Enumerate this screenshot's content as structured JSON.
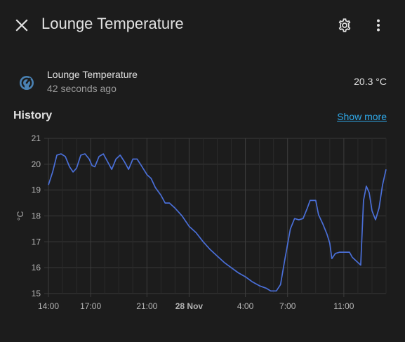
{
  "header": {
    "title": "Lounge Temperature",
    "icons": [
      "close-icon",
      "gear-icon",
      "dots-vertical-icon"
    ]
  },
  "entity": {
    "name": "Lounge Temperature",
    "last_changed": "42 seconds ago",
    "state": "20.3 °C",
    "icon": "thermostat-gauge-icon"
  },
  "history": {
    "title": "History",
    "show_more": "Show more"
  },
  "colors": {
    "background": "#1c1c1c",
    "line": "#4a6fd8",
    "link": "#2fa8e8",
    "icon": "#4a82b4"
  },
  "chart_data": {
    "type": "line",
    "ylabel": "°C",
    "ylim": [
      15,
      21
    ],
    "yticks": [
      15,
      16,
      17,
      18,
      19,
      20,
      21
    ],
    "xlabels": [
      {
        "t": 0,
        "label": "14:00",
        "bold": false
      },
      {
        "t": 3,
        "label": "17:00",
        "bold": false
      },
      {
        "t": 7,
        "label": "21:00",
        "bold": false
      },
      {
        "t": 10,
        "label": "28 Nov",
        "bold": true
      },
      {
        "t": 14,
        "label": "4:00",
        "bold": false
      },
      {
        "t": 17,
        "label": "7:00",
        "bold": false
      },
      {
        "t": 21,
        "label": "11:00",
        "bold": false
      }
    ],
    "xgrid": [
      0,
      1,
      2,
      3,
      4,
      5,
      6,
      7,
      8,
      9,
      10,
      11,
      12,
      13,
      14,
      15,
      16,
      17,
      18,
      19,
      20,
      21,
      22,
      23,
      24
    ],
    "series": [
      {
        "points": [
          [
            0.0,
            19.2
          ],
          [
            0.3,
            19.7
          ],
          [
            0.6,
            20.35
          ],
          [
            0.9,
            20.4
          ],
          [
            1.2,
            20.3
          ],
          [
            1.5,
            19.9
          ],
          [
            1.75,
            19.7
          ],
          [
            2.0,
            19.85
          ],
          [
            2.3,
            20.35
          ],
          [
            2.6,
            20.4
          ],
          [
            2.9,
            20.2
          ],
          [
            3.1,
            19.95
          ],
          [
            3.3,
            19.9
          ],
          [
            3.6,
            20.3
          ],
          [
            3.9,
            20.4
          ],
          [
            4.2,
            20.1
          ],
          [
            4.5,
            19.8
          ],
          [
            4.8,
            20.2
          ],
          [
            5.1,
            20.35
          ],
          [
            5.4,
            20.1
          ],
          [
            5.7,
            19.8
          ],
          [
            6.0,
            20.2
          ],
          [
            6.3,
            20.2
          ],
          [
            6.6,
            19.95
          ],
          [
            7.0,
            19.6
          ],
          [
            7.3,
            19.45
          ],
          [
            7.6,
            19.1
          ],
          [
            8.0,
            18.8
          ],
          [
            8.3,
            18.5
          ],
          [
            8.6,
            18.5
          ],
          [
            9.0,
            18.3
          ],
          [
            9.5,
            18.0
          ],
          [
            10.0,
            17.6
          ],
          [
            10.5,
            17.35
          ],
          [
            11.0,
            17.0
          ],
          [
            11.5,
            16.7
          ],
          [
            12.0,
            16.45
          ],
          [
            12.5,
            16.2
          ],
          [
            13.0,
            16.0
          ],
          [
            13.5,
            15.8
          ],
          [
            14.0,
            15.65
          ],
          [
            14.5,
            15.45
          ],
          [
            15.0,
            15.3
          ],
          [
            15.5,
            15.2
          ],
          [
            15.8,
            15.1
          ],
          [
            16.2,
            15.1
          ],
          [
            16.5,
            15.35
          ],
          [
            16.8,
            16.3
          ],
          [
            17.2,
            17.5
          ],
          [
            17.5,
            17.9
          ],
          [
            17.8,
            17.85
          ],
          [
            18.1,
            17.9
          ],
          [
            18.4,
            18.3
          ],
          [
            18.6,
            18.6
          ],
          [
            19.0,
            18.6
          ],
          [
            19.2,
            18.05
          ],
          [
            19.5,
            17.7
          ],
          [
            19.8,
            17.3
          ],
          [
            20.0,
            16.95
          ],
          [
            20.15,
            16.35
          ],
          [
            20.4,
            16.55
          ],
          [
            20.7,
            16.6
          ],
          [
            21.0,
            16.6
          ],
          [
            21.4,
            16.6
          ],
          [
            21.6,
            16.4
          ],
          [
            21.9,
            16.25
          ],
          [
            22.2,
            16.1
          ],
          [
            22.4,
            18.6
          ],
          [
            22.6,
            19.15
          ],
          [
            22.8,
            18.9
          ],
          [
            23.0,
            18.2
          ],
          [
            23.25,
            17.85
          ],
          [
            23.5,
            18.3
          ],
          [
            23.75,
            19.2
          ],
          [
            24.0,
            19.8
          ]
        ]
      }
    ]
  }
}
